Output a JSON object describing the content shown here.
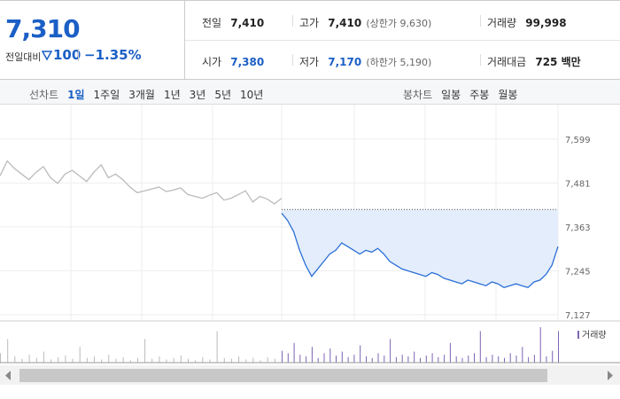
{
  "header": {
    "price": "7,310",
    "change_label": "전일대비",
    "change": "100",
    "change_rate": "−1.35%"
  },
  "info": [
    [
      {
        "label": "전일",
        "value": "7,410"
      },
      {
        "label": "고가",
        "value": "7,410",
        "note": "(상한가 9,630)"
      },
      {
        "label": "거래량",
        "value": "99,998"
      }
    ],
    [
      {
        "label": "시가",
        "value": "7,380"
      },
      {
        "label": "저가",
        "value": "7,170",
        "note": "(하한가 5,190)"
      },
      {
        "label": "거래대금",
        "value": "725 백만"
      }
    ]
  ],
  "tabs": {
    "line_label": "선차트",
    "line_tabs": [
      "1일",
      "1주일",
      "3개월",
      "1년",
      "3년",
      "5년",
      "10년"
    ],
    "candle_label": "봉차트",
    "candle_tabs": [
      "일봉",
      "주봉",
      "월봉"
    ]
  },
  "chart_data": {
    "type": "line",
    "ylim": [
      7103,
      7675
    ],
    "yticks": [
      {
        "value": 7599,
        "label": "7,599"
      },
      {
        "value": 7481,
        "label": "7,481"
      },
      {
        "value": 7363,
        "label": "7,363"
      },
      {
        "value": 7245,
        "label": "7,245"
      },
      {
        "value": 7127,
        "label": "7,127"
      }
    ],
    "ref_value": 7410,
    "series": [
      {
        "color": "#bbbbbb",
        "values": [
          7500,
          7540,
          7520,
          7505,
          7490,
          7510,
          7525,
          7495,
          7480,
          7505,
          7515,
          7500,
          7485,
          7510,
          7530,
          7495,
          7505,
          7490,
          7470,
          7455,
          7460,
          7465,
          7470,
          7458,
          7462,
          7468,
          7450,
          7445,
          7440,
          7448,
          7455,
          7435,
          7440,
          7450,
          7460,
          7430,
          7445,
          7438,
          7425,
          7440
        ]
      },
      {
        "color": "#2b6fd6",
        "fill": "#e3edfb",
        "values": [
          7400,
          7380,
          7350,
          7300,
          7260,
          7230,
          7250,
          7270,
          7290,
          7300,
          7320,
          7310,
          7300,
          7290,
          7300,
          7295,
          7305,
          7290,
          7270,
          7260,
          7250,
          7245,
          7240,
          7235,
          7230,
          7240,
          7235,
          7225,
          7220,
          7215,
          7210,
          7220,
          7215,
          7210,
          7205,
          7215,
          7210,
          7200,
          7205,
          7210,
          7205,
          7200,
          7215,
          7220,
          7235,
          7260,
          7310
        ]
      }
    ],
    "volume": {
      "label": "거래량",
      "colors": [
        "#bbbbbb",
        "#7d64b4"
      ],
      "values": [
        [
          12,
          30,
          8,
          5,
          10,
          6,
          14,
          4,
          7,
          9,
          5,
          20,
          6,
          8,
          4,
          10,
          5,
          7,
          3,
          6,
          30,
          5,
          8,
          4,
          6,
          9,
          5,
          3,
          7,
          4,
          40,
          6,
          5,
          8,
          4,
          6,
          3,
          7,
          5,
          9
        ],
        [
          15,
          12,
          25,
          10,
          8,
          20,
          6,
          12,
          18,
          9,
          14,
          7,
          10,
          22,
          8,
          6,
          12,
          9,
          30,
          7,
          10,
          8,
          14,
          6,
          9,
          12,
          7,
          10,
          25,
          8,
          6,
          9,
          12,
          40,
          7,
          10,
          8,
          6,
          12,
          9,
          20,
          7,
          10,
          45,
          8,
          15,
          40
        ]
      ]
    }
  }
}
